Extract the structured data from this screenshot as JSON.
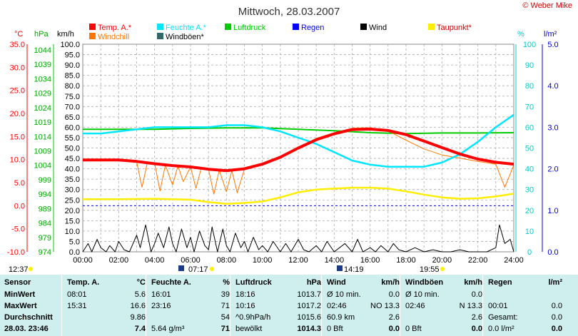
{
  "header": {
    "title": "Mittwoch, 28.03.2007",
    "copyright": "© Weber Mike"
  },
  "legend": [
    {
      "label": "Temp. A.*",
      "color": "#ff0000"
    },
    {
      "label": "Feuchte A.*",
      "color": "#00e6ff"
    },
    {
      "label": "Luftdruck",
      "color": "#00cc00"
    },
    {
      "label": "Regen",
      "color": "#0000ff"
    },
    {
      "label": "Wind",
      "color": "#000000"
    },
    {
      "label": "Taupunkt*",
      "color": "#ffee00"
    },
    {
      "label": "Windchill",
      "color": "#ff7700"
    },
    {
      "label": "Windböen*",
      "color": "#336666"
    }
  ],
  "axes_units": {
    "temp": "°C",
    "pressure": "hPa",
    "wind": "km/h",
    "humidity": "%",
    "rain": "l/m²"
  },
  "axis_ticks": {
    "temp": [
      "35.0",
      "30.0",
      "25.0",
      "20.0",
      "15.0",
      "10.0",
      "5.0",
      "0.0",
      "-5.0",
      "-10.0"
    ],
    "pressure": [
      "1044",
      "1039",
      "1034",
      "1029",
      "1024",
      "1019",
      "1014",
      "1009",
      "1004",
      "999",
      "994",
      "989",
      "984",
      "979",
      "974"
    ],
    "wind": [
      "100.0",
      "95.0",
      "90.0",
      "85.0",
      "80.0",
      "75.0",
      "70.0",
      "65.0",
      "60.0",
      "55.0",
      "50.0",
      "45.0",
      "40.0",
      "35.0",
      "30.0",
      "25.0",
      "20.0",
      "15.0",
      "10.0",
      "5.0",
      "0.0"
    ],
    "humidity": [
      "100",
      "90",
      "80",
      "70",
      "60",
      "50",
      "40",
      "30",
      "20",
      "10",
      "0"
    ],
    "rain": [
      "5.0",
      "4.0",
      "3.0",
      "2.0",
      "1.0",
      "0.0"
    ],
    "time": [
      "00:00",
      "02:00",
      "04:00",
      "06:00",
      "08:00",
      "10:00",
      "12:00",
      "14:00",
      "16:00",
      "18:00",
      "20:00",
      "22:00",
      "24:00"
    ]
  },
  "markers": {
    "moon_set": "12:37",
    "sunrise": "07:17",
    "noon": "14:19",
    "sunset": "19:55"
  },
  "chart_data": {
    "type": "line",
    "title": "Mittwoch, 28.03.2007",
    "x_unit": "hour",
    "xlim": [
      0,
      24
    ],
    "temp_range": [
      -10,
      35
    ],
    "series": [
      {
        "name": "Temp. A.*",
        "axis": "temp",
        "color": "#ff0000",
        "x": [
          0,
          1,
          2,
          3,
          4,
          5,
          6,
          7,
          8,
          9,
          10,
          11,
          12,
          13,
          14,
          15,
          16,
          17,
          18,
          19,
          20,
          21,
          22,
          23,
          24
        ],
        "y": [
          9.9,
          9.9,
          9.9,
          9.6,
          9.1,
          8.7,
          8.4,
          7.9,
          7.6,
          8.0,
          9.0,
          10.5,
          12.5,
          14.3,
          15.6,
          16.5,
          16.6,
          16.3,
          15.4,
          14.0,
          12.6,
          11.2,
          10.1,
          9.4,
          9.0
        ]
      },
      {
        "name": "Windchill",
        "axis": "temp",
        "color": "#ff7700",
        "x": [
          0,
          0.5,
          1,
          1.5,
          2,
          2.5,
          3,
          3.3,
          3.6,
          4,
          4.3,
          4.6,
          5,
          5.3,
          5.6,
          6,
          6.3,
          6.6,
          7,
          7.3,
          7.6,
          8,
          8.3,
          8.6,
          9,
          10,
          11,
          12,
          13,
          14,
          15,
          16,
          17,
          18,
          19,
          20,
          21,
          22,
          23,
          23.5,
          24
        ],
        "y": [
          9.9,
          9.9,
          9.9,
          9.9,
          9.9,
          9.8,
          9.5,
          4.0,
          9.4,
          9.2,
          3.2,
          8.8,
          4.5,
          8.6,
          5.2,
          8.4,
          3.8,
          8.2,
          7.9,
          2.5,
          7.7,
          3.0,
          7.6,
          2.8,
          7.9,
          9.1,
          10.6,
          12.6,
          14.6,
          15.8,
          16.8,
          16.9,
          16.2,
          14.2,
          12.3,
          11.0,
          10.3,
          9.6,
          9.0,
          4.0,
          8.8
        ]
      },
      {
        "name": "Feuchte A.*",
        "axis": "humidity",
        "color": "#00e6ff",
        "x": [
          0,
          1,
          2,
          3,
          4,
          5,
          6,
          7,
          8,
          9,
          10,
          11,
          12,
          13,
          14,
          15,
          16,
          17,
          18,
          19,
          20,
          21,
          22,
          23,
          24
        ],
        "y": [
          57,
          57,
          58,
          59,
          60,
          60,
          60,
          60,
          61,
          61,
          60,
          58,
          55,
          52,
          48,
          44,
          42,
          41,
          41,
          41,
          43,
          47,
          53,
          60,
          66
        ]
      },
      {
        "name": "Luftdruck",
        "axis": "pressure",
        "color": "#00cc00",
        "x": [
          0,
          2,
          4,
          6,
          8,
          10,
          12,
          14,
          16,
          18,
          20,
          22,
          24
        ],
        "y": [
          1016.5,
          1016.5,
          1016.5,
          1016.8,
          1017.0,
          1017.0,
          1016.5,
          1016.0,
          1015.3,
          1015.0,
          1015.2,
          1015.2,
          1015.3
        ]
      },
      {
        "name": "Taupunkt*",
        "axis": "temp",
        "color": "#ffee00",
        "x": [
          0,
          2,
          4,
          6,
          7,
          8,
          9,
          10,
          11,
          12,
          13,
          14,
          15,
          16,
          17,
          18,
          19,
          20,
          21,
          22,
          23,
          24
        ],
        "y": [
          1.4,
          1.4,
          1.5,
          1.3,
          0.8,
          0.4,
          0.6,
          0.9,
          1.8,
          2.9,
          3.5,
          3.7,
          3.9,
          3.9,
          3.7,
          3.1,
          2.4,
          1.8,
          1.5,
          1.6,
          2.0,
          2.6
        ]
      },
      {
        "name": "Wind",
        "axis": "wind",
        "color": "#000000",
        "x": [
          0,
          0.3,
          0.5,
          0.8,
          1,
          1.3,
          1.5,
          1.8,
          2,
          2.3,
          2.6,
          3,
          3.2,
          3.5,
          3.8,
          4,
          4.2,
          4.5,
          4.8,
          5,
          5.2,
          5.5,
          5.8,
          6,
          6.2,
          6.5,
          6.8,
          7,
          7.2,
          7.5,
          7.8,
          8,
          8.2,
          8.5,
          8.8,
          9,
          9.2,
          9.5,
          9.8,
          10,
          10.3,
          10.6,
          11,
          11.3,
          11.6,
          12,
          12.3,
          12.6,
          13,
          13.3,
          13.6,
          14,
          14.3,
          14.6,
          15,
          15.3,
          15.6,
          16,
          16.3,
          16.6,
          17,
          17.3,
          17.6,
          18,
          18.5,
          19,
          19.5,
          20,
          20.5,
          21,
          21.5,
          22,
          22.5,
          23,
          23.2,
          23.5,
          23.8,
          24
        ],
        "y": [
          0,
          4,
          0,
          6,
          2,
          0,
          3,
          0,
          5,
          1,
          0,
          8,
          2,
          13,
          0,
          4,
          9,
          2,
          12,
          4,
          0,
          11,
          2,
          7,
          0,
          10,
          3,
          1,
          12,
          0,
          11,
          3,
          0,
          9,
          2,
          5,
          0,
          7,
          1,
          3,
          0,
          5,
          0,
          4,
          0,
          6,
          1,
          0,
          3,
          0,
          5,
          0,
          2,
          4,
          0,
          6,
          0,
          2,
          0,
          3,
          0,
          4,
          1,
          0,
          2,
          0,
          1,
          0,
          0,
          1,
          0,
          0,
          0,
          2,
          13,
          4,
          6,
          0
        ]
      }
    ],
    "stats": {
      "headers": [
        "Sensor",
        "Temp. A.",
        "°C",
        "Feuchte A.",
        "%",
        "Luftdruck",
        "hPa",
        "Wind",
        "km/h",
        "Windböen",
        "km/h",
        "Regen",
        "l/m²"
      ],
      "rows": [
        {
          "label": "MinWert",
          "temp_time": "08:01",
          "temp_val": "5.6",
          "hum_time": "16:01",
          "hum_val": "39",
          "press_time": "18:16",
          "press_val": "1013.7",
          "wind_label": "Ø 10 min.",
          "wind_val": "0.0",
          "gust_label": "Ø 10 min.",
          "gust_val": "0.0",
          "rain_label": "",
          "rain_val": ""
        },
        {
          "label": "MaxWert",
          "temp_time": "15:31",
          "temp_val": "16.6",
          "hum_time": "23:16",
          "hum_val": "71",
          "press_time": "10:16",
          "press_val": "1017.2",
          "wind_label": "02:46",
          "wind_dir": "NO 13.3",
          "gust_label": "02:46",
          "gust_dir": "N 13.3",
          "rain_label": "00:01",
          "rain_val": "0.0"
        },
        {
          "label": "Durchschnitt",
          "temp_time": "",
          "temp_val": "9.86",
          "hum_time": "",
          "hum_val": "54",
          "press_time": "^0.9hPa/h",
          "press_val": "1015.6",
          "wind_label": "60.9 km",
          "wind_val": "2.6",
          "gust_label": "",
          "gust_val": "2.6",
          "rain_label": "Gesamt:",
          "rain_val": "0.0"
        },
        {
          "label": "28.03. 23:46",
          "temp_time": "",
          "temp_val": "7.4",
          "hum_time": "5.64 g/m³",
          "hum_val": "71",
          "press_time": "bewölkt",
          "press_val": "1014.3",
          "wind_label": "0 Bft",
          "wind_val": "0.0",
          "gust_label": "0 Bft",
          "gust_val": "0.0",
          "rain_label": "0.0 l/m²",
          "rain_val": "0.0"
        }
      ]
    }
  }
}
